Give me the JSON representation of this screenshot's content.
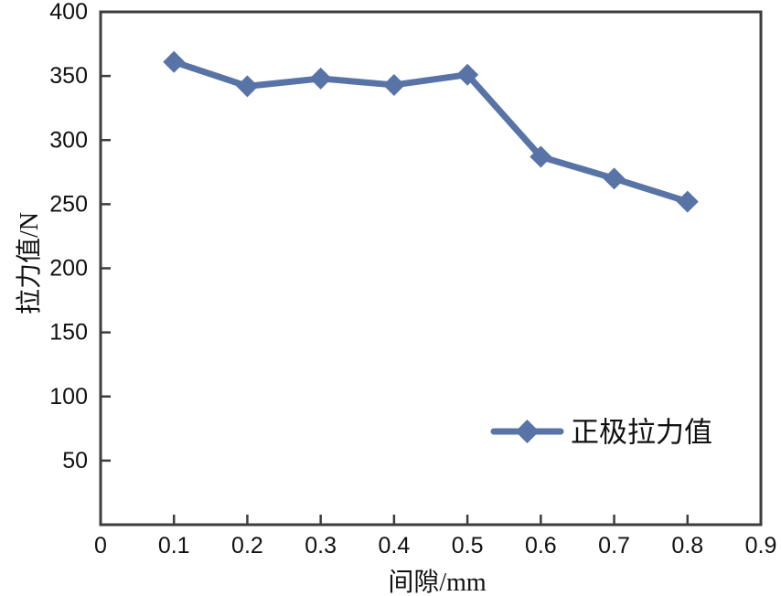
{
  "chart_data": {
    "type": "line",
    "title": "",
    "xlabel": "间隙/mm",
    "ylabel": "拉力值/N",
    "series": [
      {
        "name": "正极拉力值",
        "x": [
          0.1,
          0.2,
          0.3,
          0.4,
          0.5,
          0.6,
          0.7,
          0.8
        ],
        "values": [
          361,
          342,
          348,
          343,
          351,
          287,
          270,
          252
        ]
      }
    ],
    "xlim": [
      0,
      0.9
    ],
    "ylim": [
      0,
      400
    ],
    "xticks": [
      {
        "v": 0,
        "label": "0"
      },
      {
        "v": 0.1,
        "label": "0.1"
      },
      {
        "v": 0.2,
        "label": "0.2"
      },
      {
        "v": 0.3,
        "label": "0.3"
      },
      {
        "v": 0.4,
        "label": "0.4"
      },
      {
        "v": 0.5,
        "label": "0.5"
      },
      {
        "v": 0.6,
        "label": "0.6"
      },
      {
        "v": 0.7,
        "label": "0.7"
      },
      {
        "v": 0.8,
        "label": "0.8"
      },
      {
        "v": 0.9,
        "label": "0.9"
      }
    ],
    "yticks": [
      {
        "v": 50,
        "label": "50"
      },
      {
        "v": 100,
        "label": "100"
      },
      {
        "v": 150,
        "label": "150"
      },
      {
        "v": 200,
        "label": "200"
      },
      {
        "v": 250,
        "label": "250"
      },
      {
        "v": 300,
        "label": "300"
      },
      {
        "v": 350,
        "label": "350"
      },
      {
        "v": 400,
        "label": "400"
      }
    ],
    "grid": false,
    "marker": "diamond",
    "legend_position": "inside-lower-right",
    "colors": {
      "series": "#5873A5",
      "axis": "#3d3d3d",
      "text": "#111111"
    }
  }
}
